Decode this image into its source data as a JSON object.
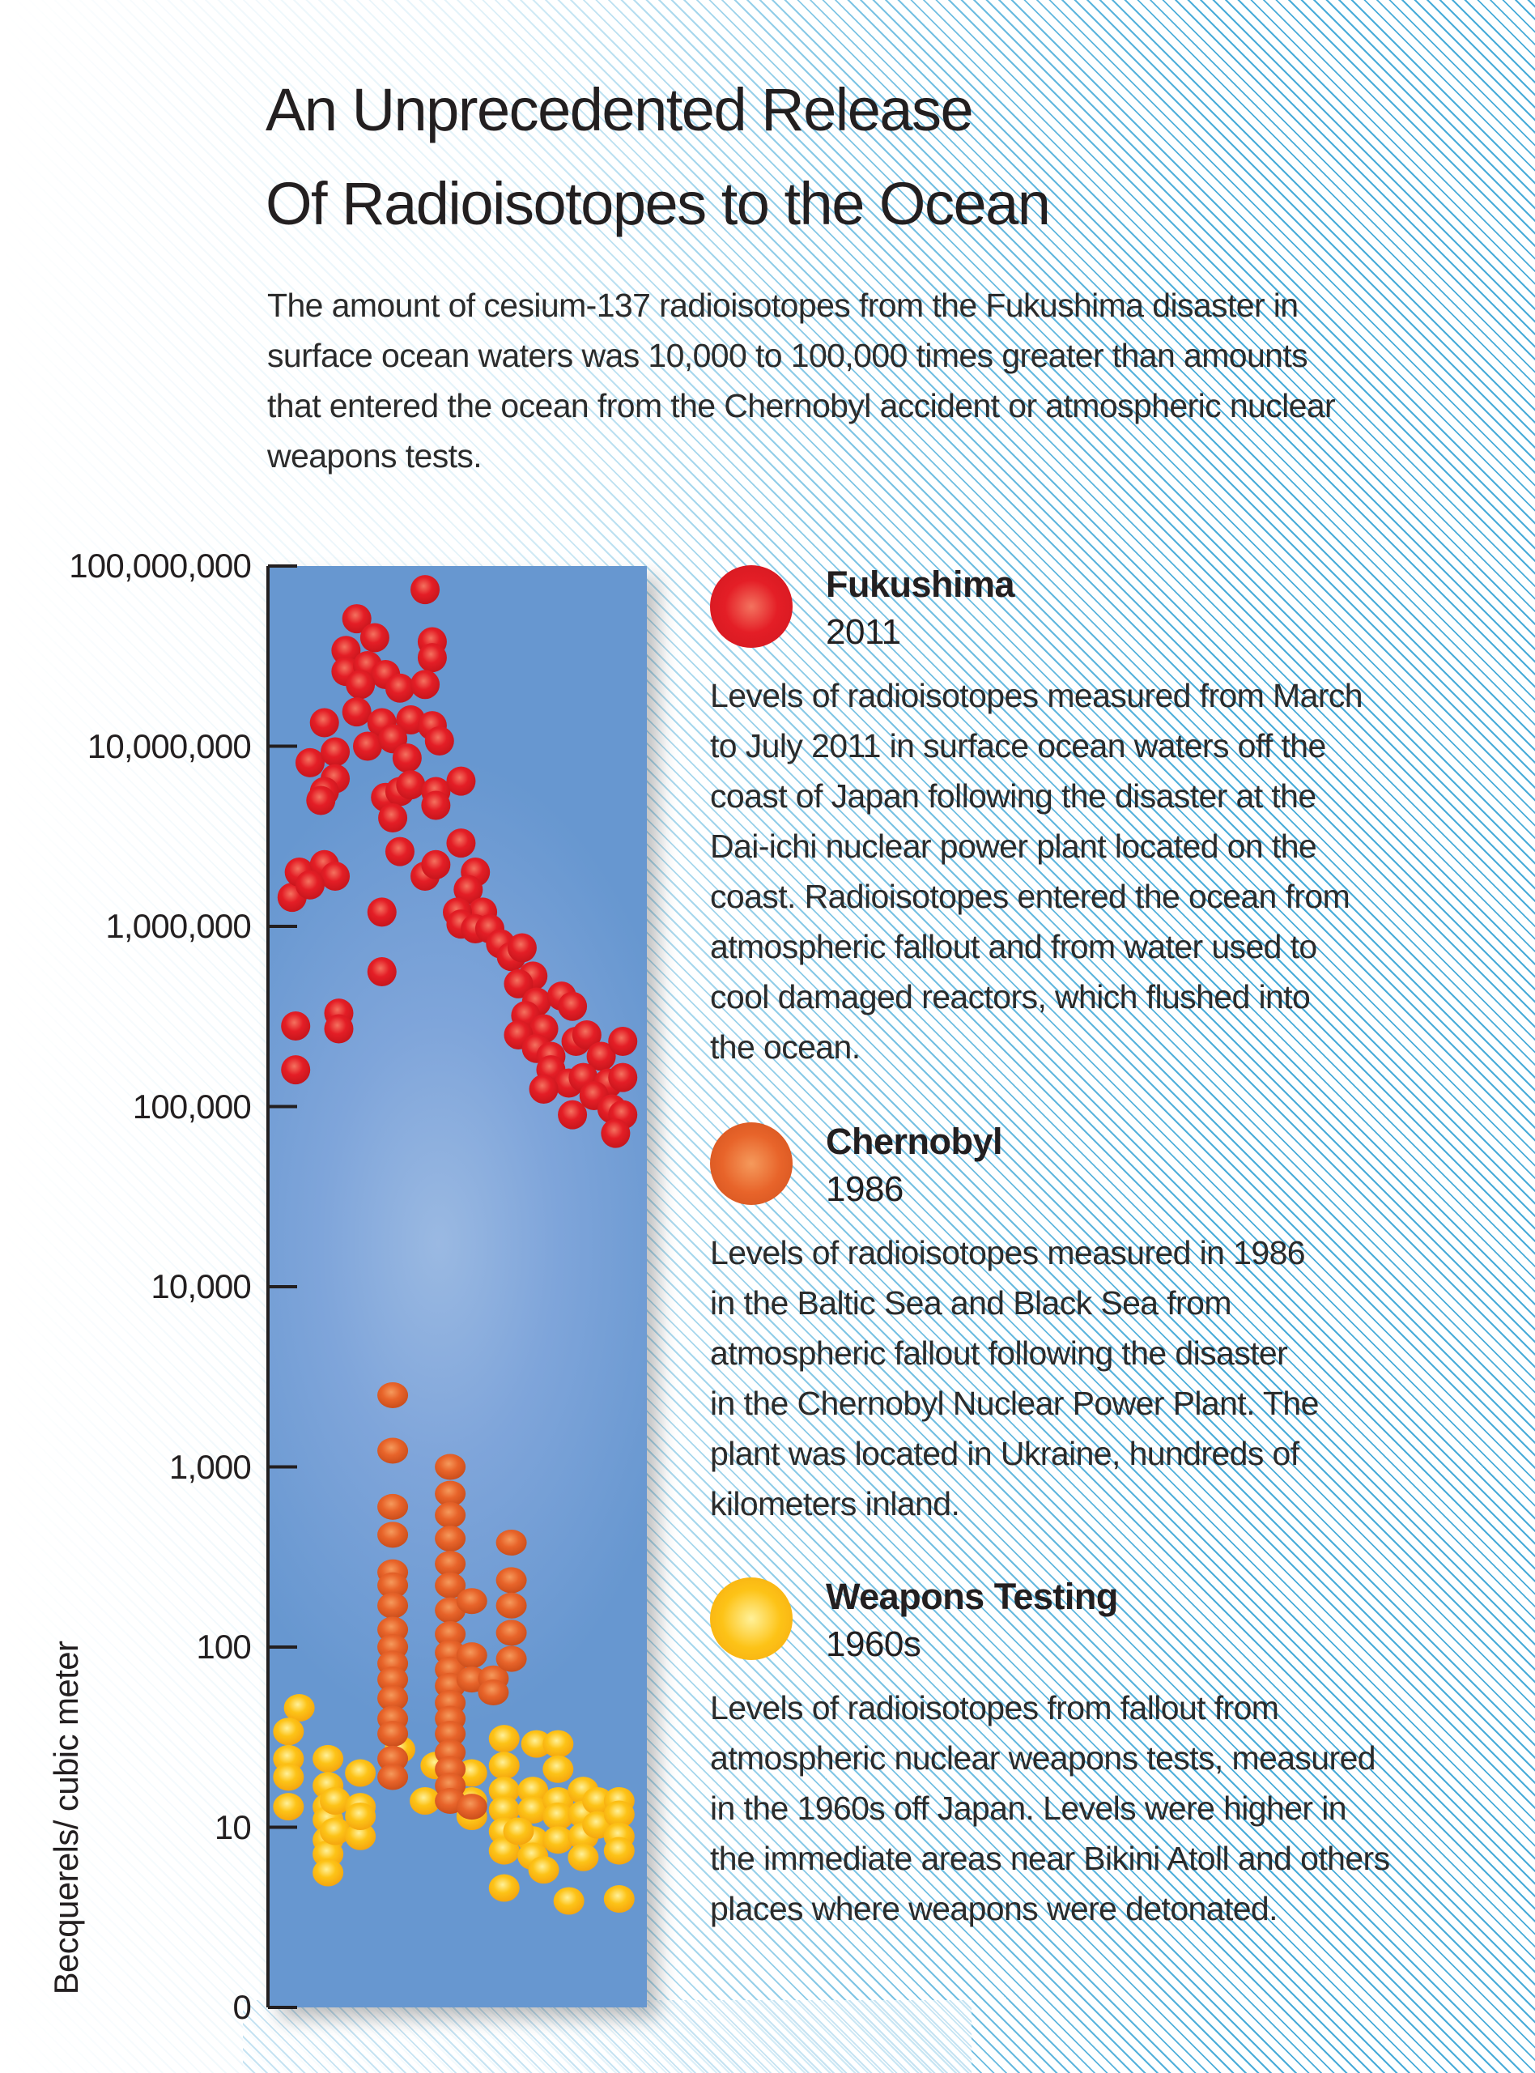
{
  "title_lines": [
    "An Unprecedented Release",
    "Of Radioisotopes to the Ocean"
  ],
  "subtitle_lines": [
    "The amount of cesium-137 radioisotopes from the Fukushima disaster in",
    "surface ocean waters was 10,000 to 100,000 times greater than amounts",
    "that entered the ocean from the Chernobyl accident or atmospheric nuclear",
    "weapons tests."
  ],
  "legend": [
    {
      "name": "Fukushima",
      "year": "2011",
      "color": "#e41e26",
      "desc_lines": [
        "Levels of radioisotopes measured from March",
        "to July 2011 in surface ocean waters off the",
        "coast of Japan following the disaster at the",
        "Dai-ichi nuclear power plant located on the",
        "coast. Radioisotopes entered the ocean from",
        "atmospheric fallout and from water used to",
        "cool damaged reactors, which flushed into",
        "the ocean."
      ]
    },
    {
      "name": "Chernobyl",
      "year": "1986",
      "color": "#e8642a",
      "desc_lines": [
        "Levels of radioisotopes measured in 1986",
        "in the Baltic Sea and Black Sea from",
        "atmospheric fallout following the disaster",
        "in the Chernobyl Nuclear Power Plant. The",
        "plant was located in Ukraine, hundreds of",
        "kilometers inland."
      ]
    },
    {
      "name": "Weapons Testing",
      "year": "1960s",
      "color": "#fdb913",
      "desc_lines": [
        "Levels of radioisotopes from fallout from",
        "atmospheric nuclear weapons tests, measured",
        "in the 1960s off Japan. Levels were higher in",
        "the immediate areas near Bikini Atoll and others",
        "places where weapons were detonated."
      ]
    }
  ],
  "chart_data": {
    "type": "scatter",
    "ylabel": "Becquerels/ cubic meter",
    "xlabel": "",
    "y_scale": "log",
    "ylim": [
      1,
      100000000
    ],
    "xlim": [
      0,
      100
    ],
    "grid": false,
    "plot_background": "#6797d0",
    "yticks": [
      {
        "value": 100000000,
        "label": "100,000,000"
      },
      {
        "value": 10000000,
        "label": "10,000,000"
      },
      {
        "value": 1000000,
        "label": "1,000,000"
      },
      {
        "value": 100000,
        "label": "100,000"
      },
      {
        "value": 10000,
        "label": "10,000"
      },
      {
        "value": 1000,
        "label": "1,000"
      },
      {
        "value": 100,
        "label": "100"
      },
      {
        "value": 10,
        "label": "10"
      },
      {
        "value": 1,
        "label": "0"
      }
    ],
    "series": [
      {
        "name": "Fukushima",
        "color": "#e41e26",
        "points": [
          [
            41,
            74000000
          ],
          [
            22,
            51000000
          ],
          [
            27,
            40000000
          ],
          [
            19,
            34000000
          ],
          [
            43,
            38000000
          ],
          [
            43,
            31000000
          ],
          [
            19,
            26000000
          ],
          [
            25,
            28000000
          ],
          [
            30,
            25000000
          ],
          [
            34,
            21000000
          ],
          [
            41,
            22000000
          ],
          [
            23,
            22000000
          ],
          [
            13,
            13500000
          ],
          [
            22,
            15500000
          ],
          [
            29,
            13500000
          ],
          [
            37,
            14000000
          ],
          [
            43,
            13000000
          ],
          [
            45,
            10700000
          ],
          [
            9,
            8100000
          ],
          [
            16,
            9300000
          ],
          [
            25,
            10000000
          ],
          [
            32,
            11000000
          ],
          [
            36,
            8600000
          ],
          [
            16,
            6600000
          ],
          [
            13,
            5600000
          ],
          [
            12,
            5000000
          ],
          [
            30,
            5200000
          ],
          [
            34,
            5600000
          ],
          [
            37,
            6100000
          ],
          [
            44,
            5600000
          ],
          [
            51,
            6400000
          ],
          [
            44,
            4700000
          ],
          [
            32,
            4000000
          ],
          [
            34,
            2600000
          ],
          [
            41,
            1900000
          ],
          [
            51,
            2900000
          ],
          [
            55,
            2000000
          ],
          [
            44,
            2200000
          ],
          [
            53,
            1600000
          ],
          [
            57,
            1200000
          ],
          [
            50,
            1200000
          ],
          [
            4,
            1450000
          ],
          [
            6,
            2000000
          ],
          [
            13,
            2200000
          ],
          [
            16,
            1900000
          ],
          [
            9,
            1700000
          ],
          [
            29,
            1200000
          ],
          [
            29,
            560000
          ],
          [
            51,
            1030000
          ],
          [
            55,
            970000
          ],
          [
            59,
            970000
          ],
          [
            62,
            800000
          ],
          [
            65,
            680000
          ],
          [
            68,
            760000
          ],
          [
            71,
            530000
          ],
          [
            67,
            480000
          ],
          [
            72,
            380000
          ],
          [
            69,
            320000
          ],
          [
            74,
            270000
          ],
          [
            79,
            410000
          ],
          [
            82,
            360000
          ],
          [
            67,
            250000
          ],
          [
            72,
            210000
          ],
          [
            76,
            190000
          ],
          [
            83,
            230000
          ],
          [
            86,
            250000
          ],
          [
            90,
            190000
          ],
          [
            96,
            230000
          ],
          [
            76,
            160000
          ],
          [
            81,
            135000
          ],
          [
            85,
            145000
          ],
          [
            92,
            135000
          ],
          [
            96,
            145000
          ],
          [
            74,
            125000
          ],
          [
            82,
            90000
          ],
          [
            88,
            115000
          ],
          [
            93,
            97000
          ],
          [
            96,
            90000
          ],
          [
            94,
            71000
          ],
          [
            5,
            280000
          ],
          [
            5,
            160000
          ],
          [
            17,
            330000
          ],
          [
            17,
            270000
          ]
        ]
      },
      {
        "name": "Chernobyl",
        "color": "#e8642a",
        "points": [
          [
            32,
            2500
          ],
          [
            32,
            1230
          ],
          [
            32,
            600
          ],
          [
            32,
            420
          ],
          [
            32,
            260
          ],
          [
            32,
            220
          ],
          [
            32,
            170
          ],
          [
            32,
            125
          ],
          [
            32,
            100
          ],
          [
            32,
            81
          ],
          [
            32,
            66
          ],
          [
            32,
            52
          ],
          [
            32,
            40
          ],
          [
            32,
            33
          ],
          [
            32,
            24
          ],
          [
            32,
            19
          ],
          [
            48,
            1000
          ],
          [
            48,
            710
          ],
          [
            48,
            540
          ],
          [
            48,
            400
          ],
          [
            48,
            290
          ],
          [
            48,
            220
          ],
          [
            48,
            160
          ],
          [
            48,
            118
          ],
          [
            48,
            93
          ],
          [
            48,
            75
          ],
          [
            48,
            61
          ],
          [
            48,
            49
          ],
          [
            48,
            40
          ],
          [
            48,
            33
          ],
          [
            48,
            26
          ],
          [
            48,
            21
          ],
          [
            48,
            17
          ],
          [
            48,
            14
          ],
          [
            54,
            180
          ],
          [
            54,
            90
          ],
          [
            54,
            66
          ],
          [
            54,
            13
          ],
          [
            60,
            67
          ],
          [
            60,
            56
          ],
          [
            65,
            380
          ],
          [
            65,
            235
          ],
          [
            65,
            170
          ],
          [
            65,
            120
          ],
          [
            65,
            86
          ]
        ]
      },
      {
        "name": "Weapons Testing",
        "color": "#fdb913",
        "points": [
          [
            6,
            46
          ],
          [
            3,
            34
          ],
          [
            3,
            24
          ],
          [
            3,
            19
          ],
          [
            3,
            13
          ],
          [
            14,
            24
          ],
          [
            14,
            17
          ],
          [
            14,
            13
          ],
          [
            14,
            11
          ],
          [
            14,
            8.5
          ],
          [
            14,
            7.1
          ],
          [
            14,
            5.6
          ],
          [
            16,
            14
          ],
          [
            16,
            9.5
          ],
          [
            23,
            20
          ],
          [
            23,
            13
          ],
          [
            23,
            8.9
          ],
          [
            23,
            11.5
          ],
          [
            34,
            27
          ],
          [
            41,
            14
          ],
          [
            44,
            22
          ],
          [
            54,
            20
          ],
          [
            54,
            14
          ],
          [
            54,
            11.5
          ],
          [
            63,
            31
          ],
          [
            63,
            22
          ],
          [
            63,
            16
          ],
          [
            63,
            12.5
          ],
          [
            63,
            9.5
          ],
          [
            63,
            7.4
          ],
          [
            63,
            4.6
          ],
          [
            71,
            16
          ],
          [
            71,
            12.5
          ],
          [
            71,
            8.5
          ],
          [
            71,
            6.9
          ],
          [
            72,
            29
          ],
          [
            78,
            29
          ],
          [
            78,
            21
          ],
          [
            78,
            14
          ],
          [
            78,
            11.5
          ],
          [
            78,
            8.5
          ],
          [
            81,
            3.9
          ],
          [
            85,
            16
          ],
          [
            85,
            11.8
          ],
          [
            85,
            8.9
          ],
          [
            85,
            6.8
          ],
          [
            89,
            14
          ],
          [
            89,
            10.3
          ],
          [
            95,
            14
          ],
          [
            95,
            11.8
          ],
          [
            95,
            8.9
          ],
          [
            95,
            7.4
          ],
          [
            95,
            4.0
          ],
          [
            74,
            5.8
          ],
          [
            67,
            9.5
          ]
        ]
      }
    ]
  }
}
